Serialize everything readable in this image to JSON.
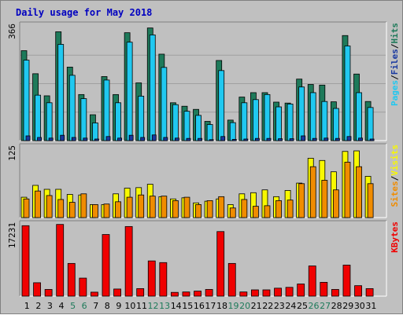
{
  "title": "Daily usage for May 2018",
  "colors": {
    "title": "#0000c0",
    "hits": "#1e7a5a",
    "files": "#20c8f0",
    "pages": "#1838a0",
    "visits": "#f8f800",
    "sites": "#f08c00",
    "kbytes": "#f00000",
    "weekend": "#1e7a5a",
    "weekday": "#000000"
  },
  "chart_data": [
    {
      "type": "bar",
      "name": "hits-files-pages",
      "ymax_label": "366",
      "ylim": [
        0,
        366
      ],
      "legend": [
        {
          "text": "Pages",
          "color": "#20c8f0"
        },
        {
          "text": "/",
          "color": "#000000"
        },
        {
          "text": "Files",
          "color": "#1838a0"
        },
        {
          "text": "/",
          "color": "#000000"
        },
        {
          "text": "Hits",
          "color": "#1e7a5a"
        }
      ],
      "categories": [
        "1",
        "2",
        "3",
        "4",
        "5",
        "6",
        "7",
        "8",
        "9",
        "10",
        "11",
        "12",
        "13",
        "14",
        "15",
        "16",
        "17",
        "18",
        "19",
        "20",
        "21",
        "22",
        "23",
        "24",
        "25",
        "26",
        "27",
        "28",
        "29",
        "30",
        "31"
      ],
      "series": [
        {
          "name": "Hits",
          "values": [
            285,
            212,
            142,
            345,
            233,
            146,
            82,
            203,
            146,
            342,
            183,
            357,
            274,
            120,
            109,
            99,
            61,
            254,
            65,
            138,
            152,
            152,
            122,
            119,
            195,
            178,
            176,
            123,
            333,
            211,
            124
          ]
        },
        {
          "name": "Files",
          "values": [
            255,
            144,
            120,
            305,
            207,
            133,
            56,
            192,
            120,
            312,
            141,
            335,
            232,
            114,
            93,
            80,
            51,
            222,
            57,
            120,
            130,
            146,
            107,
            116,
            170,
            152,
            124,
            102,
            300,
            152,
            105
          ]
        },
        {
          "name": "Pages",
          "values": [
            15,
            10,
            8,
            17,
            10,
            8,
            5,
            13,
            8,
            17,
            10,
            18,
            10,
            8,
            7,
            7,
            3,
            13,
            4,
            5,
            7,
            7,
            6,
            6,
            15,
            7,
            8,
            7,
            13,
            8,
            5
          ]
        }
      ]
    },
    {
      "type": "bar",
      "name": "visits-sites",
      "ymax_label": "125",
      "ylim": [
        0,
        125
      ],
      "legend": [
        {
          "text": "Sites",
          "color": "#f08c00"
        },
        {
          "text": "/",
          "color": "#000000"
        },
        {
          "text": "Visits",
          "color": "#f8f800"
        }
      ],
      "categories": [
        "1",
        "2",
        "3",
        "4",
        "5",
        "6",
        "7",
        "8",
        "9",
        "10",
        "11",
        "12",
        "13",
        "14",
        "15",
        "16",
        "17",
        "18",
        "19",
        "20",
        "21",
        "22",
        "23",
        "24",
        "25",
        "26",
        "27",
        "28",
        "29",
        "30",
        "31"
      ],
      "series": [
        {
          "name": "Visits",
          "values": [
            36,
            57,
            50,
            50,
            41,
            40,
            23,
            23,
            42,
            52,
            53,
            59,
            37,
            33,
            35,
            26,
            29,
            33,
            23,
            42,
            44,
            49,
            37,
            48,
            61,
            105,
            101,
            81,
            117,
            118,
            73
          ]
        },
        {
          "name": "Sites",
          "values": [
            33,
            47,
            39,
            32,
            27,
            42,
            23,
            24,
            28,
            36,
            40,
            38,
            38,
            30,
            36,
            23,
            30,
            37,
            17,
            32,
            20,
            21,
            30,
            31,
            60,
            90,
            66,
            49,
            98,
            90,
            60
          ]
        }
      ]
    },
    {
      "type": "bar",
      "name": "kbytes",
      "ymax_label": "17231",
      "ylim": [
        0,
        17231
      ],
      "legend": [
        {
          "text": "KBytes",
          "color": "#f00000"
        }
      ],
      "categories": [
        "1",
        "2",
        "3",
        "4",
        "5",
        "6",
        "7",
        "8",
        "9",
        "10",
        "11",
        "12",
        "13",
        "14",
        "15",
        "16",
        "17",
        "18",
        "19",
        "20",
        "21",
        "22",
        "23",
        "24",
        "25",
        "26",
        "27",
        "28",
        "29",
        "30",
        "31"
      ],
      "series": [
        {
          "name": "KBytes",
          "values": [
            16800,
            3200,
            1600,
            17100,
            7800,
            4300,
            950,
            14700,
            1700,
            16600,
            1800,
            8400,
            8000,
            900,
            1000,
            1200,
            1600,
            15400,
            7800,
            1000,
            1500,
            1500,
            1900,
            2100,
            2900,
            7200,
            3300,
            1600,
            7400,
            2500,
            1800
          ]
        }
      ]
    }
  ]
}
